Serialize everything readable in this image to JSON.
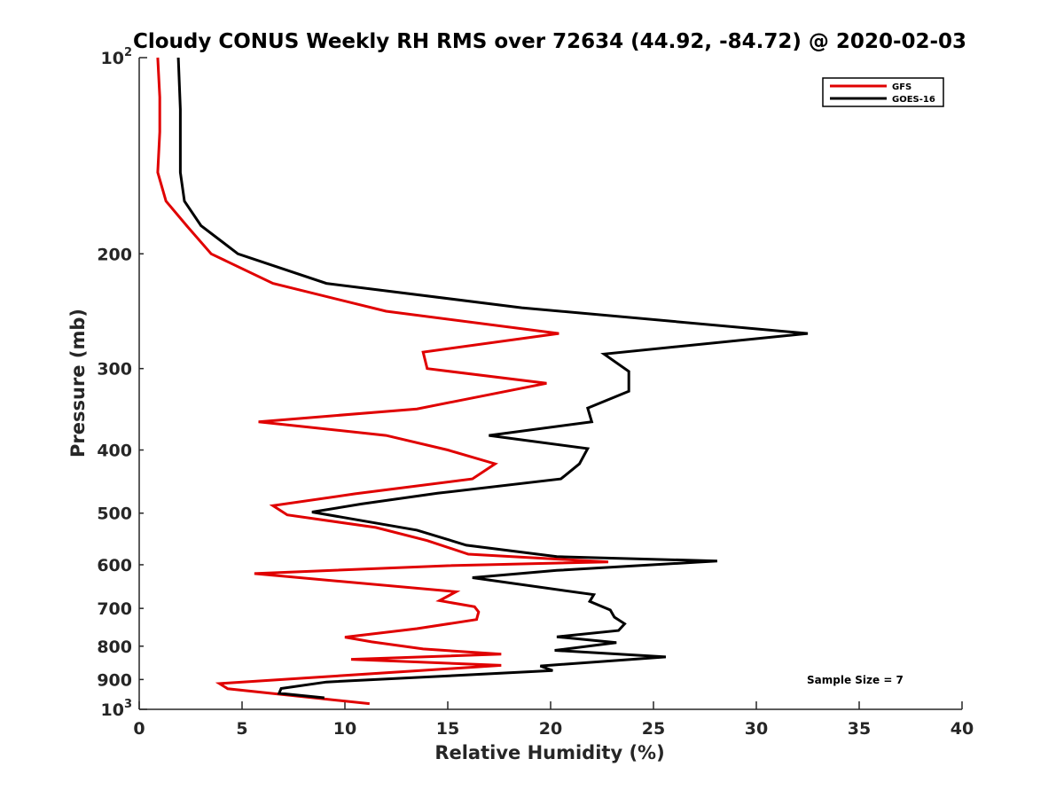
{
  "chart_data": {
    "type": "line",
    "title": "Cloudy CONUS Weekly RH RMS over 72634 (44.92, -84.72) @ 2020-02-03",
    "xlabel": "Relative Humidity (%)",
    "ylabel": "Pressure (mb)",
    "xlim": [
      0,
      40
    ],
    "ylim": [
      100,
      1000
    ],
    "y_scale": "log",
    "y_reversed": true,
    "x_ticks": [
      "0",
      "5",
      "10",
      "15",
      "20",
      "25",
      "30",
      "35",
      "40"
    ],
    "y_ticks": [
      {
        "value": 100,
        "base": "10",
        "exp": "2"
      },
      {
        "value": 200,
        "label": "200"
      },
      {
        "value": 300,
        "label": "300"
      },
      {
        "value": 400,
        "label": "400"
      },
      {
        "value": 500,
        "label": "500"
      },
      {
        "value": 600,
        "label": "600"
      },
      {
        "value": 700,
        "label": "700"
      },
      {
        "value": 800,
        "label": "800"
      },
      {
        "value": 900,
        "label": "900"
      },
      {
        "value": 1000,
        "base": "10",
        "exp": "3"
      }
    ],
    "grid": false,
    "legend_position": "top-right",
    "series": [
      {
        "name": "GFS",
        "color": "#e00000",
        "points": [
          [
            0.9,
            100
          ],
          [
            1.0,
            115
          ],
          [
            1.0,
            130
          ],
          [
            0.9,
            150
          ],
          [
            1.3,
            166
          ],
          [
            2.3,
            181
          ],
          [
            3.5,
            200
          ],
          [
            6.5,
            222
          ],
          [
            12.0,
            245
          ],
          [
            20.4,
            265
          ],
          [
            13.8,
            283
          ],
          [
            14.0,
            300
          ],
          [
            19.8,
            316
          ],
          [
            13.5,
            346
          ],
          [
            5.8,
            362
          ],
          [
            12.0,
            380
          ],
          [
            15.0,
            400
          ],
          [
            17.3,
            420
          ],
          [
            16.2,
            443
          ],
          [
            10.5,
            467
          ],
          [
            6.5,
            487
          ],
          [
            7.2,
            503
          ],
          [
            11.5,
            526
          ],
          [
            14.0,
            551
          ],
          [
            16.0,
            578
          ],
          [
            22.8,
            594
          ],
          [
            15.0,
            602
          ],
          [
            5.6,
            619
          ],
          [
            15.4,
            660
          ],
          [
            14.6,
            681
          ],
          [
            16.3,
            696
          ],
          [
            16.5,
            709
          ],
          [
            16.4,
            728
          ],
          [
            13.5,
            752
          ],
          [
            10.0,
            775
          ],
          [
            11.3,
            788
          ],
          [
            13.8,
            808
          ],
          [
            17.6,
            823
          ],
          [
            10.3,
            838
          ],
          [
            17.6,
            856
          ],
          [
            3.9,
            913
          ],
          [
            4.3,
            930
          ],
          [
            11.2,
            980
          ]
        ]
      },
      {
        "name": "GOES-16",
        "color": "#000000",
        "points": [
          [
            1.9,
            100
          ],
          [
            2.0,
            120
          ],
          [
            2.0,
            150
          ],
          [
            2.2,
            166
          ],
          [
            3.0,
            181
          ],
          [
            4.8,
            200
          ],
          [
            9.1,
            222
          ],
          [
            18.6,
            242
          ],
          [
            32.5,
            265
          ],
          [
            22.6,
            285
          ],
          [
            23.8,
            303
          ],
          [
            23.8,
            325
          ],
          [
            21.8,
            345
          ],
          [
            22.0,
            362
          ],
          [
            17.0,
            380
          ],
          [
            21.8,
            398
          ],
          [
            21.4,
            420
          ],
          [
            20.5,
            443
          ],
          [
            14.5,
            466
          ],
          [
            10.8,
            484
          ],
          [
            8.4,
            498
          ],
          [
            13.5,
            531
          ],
          [
            15.9,
            560
          ],
          [
            20.3,
            583
          ],
          [
            28.1,
            592
          ],
          [
            20.3,
            612
          ],
          [
            16.2,
            628
          ],
          [
            22.1,
            667
          ],
          [
            21.9,
            683
          ],
          [
            22.9,
            704
          ],
          [
            23.1,
            722
          ],
          [
            23.6,
            739
          ],
          [
            23.3,
            757
          ],
          [
            20.3,
            774
          ],
          [
            23.2,
            790
          ],
          [
            20.2,
            812
          ],
          [
            25.6,
            831
          ],
          [
            19.5,
            858
          ],
          [
            20.1,
            872
          ],
          [
            9.1,
            908
          ],
          [
            6.9,
            929
          ],
          [
            6.8,
            945
          ],
          [
            9.0,
            960
          ]
        ]
      }
    ],
    "annotation": "Sample Size = 7"
  }
}
